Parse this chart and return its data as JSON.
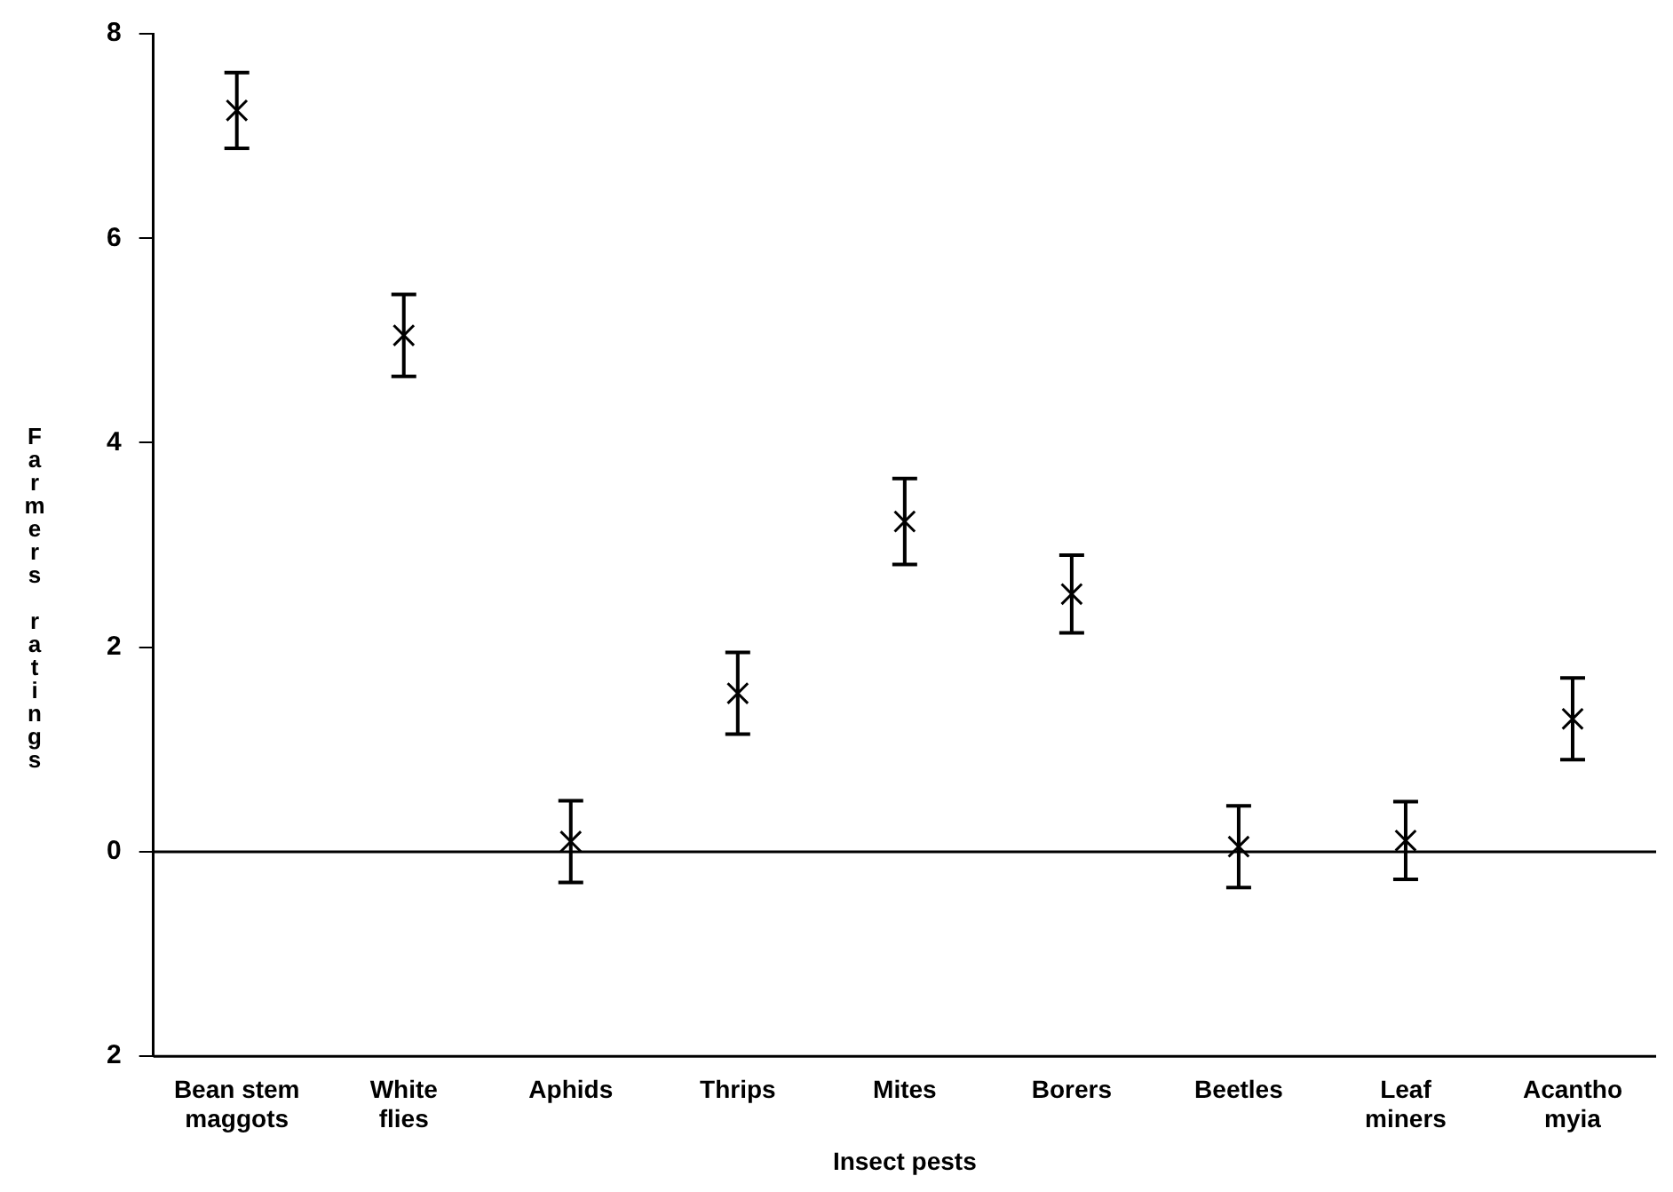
{
  "chart_data": {
    "type": "scatter",
    "xlabel": "Insect pests",
    "ylabel": "Farmers ratings",
    "categories": [
      "Bean stem\nmaggots",
      "White\nflies",
      "Aphids",
      "Thrips",
      "Mites",
      "Borers",
      "Beetles",
      "Leaf\nminers",
      "Acantho\nmyia"
    ],
    "values": [
      7.25,
      5.05,
      0.1,
      1.55,
      3.23,
      2.52,
      0.05,
      0.11,
      1.3
    ],
    "errors": [
      0.37,
      0.4,
      0.4,
      0.4,
      0.42,
      0.38,
      0.4,
      0.38,
      0.4
    ],
    "color": "#000000",
    "marker": "cross",
    "ylim": [
      -2,
      8
    ],
    "yticks": [
      {
        "value": -2,
        "label": "2"
      },
      0,
      2,
      4,
      6,
      8
    ],
    "grid": false,
    "ref_lines": [
      {
        "axis": "y",
        "value": 0
      }
    ]
  }
}
